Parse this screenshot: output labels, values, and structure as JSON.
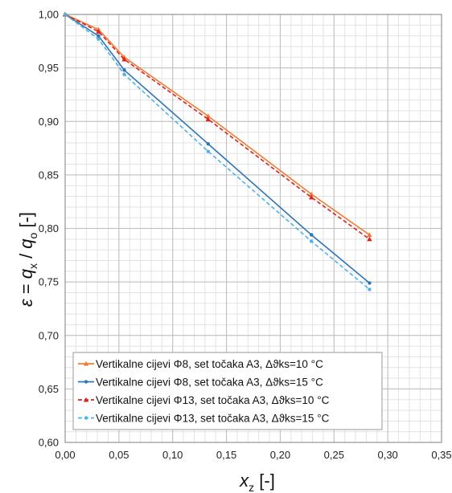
{
  "chart_data": {
    "type": "line",
    "xlabel": {
      "main": "x",
      "sub": "z",
      "unit": " [-]"
    },
    "ylabel": {
      "eps": "ε",
      "eq": " = ",
      "q1": "q",
      "s1": "x",
      "slash": " / ",
      "q2": "q",
      "s2": "o",
      "unit": " [-]"
    },
    "xlim": [
      0,
      0.35
    ],
    "ylim": [
      0.6,
      1.0
    ],
    "x_ticks": [
      "0,00",
      "0,05",
      "0,10",
      "0,15",
      "0,20",
      "0,25",
      "0,30",
      "0,35"
    ],
    "y_ticks": [
      "0,60",
      "0,65",
      "0,70",
      "0,75",
      "0,80",
      "0,85",
      "0,90",
      "0,95",
      "1,00"
    ],
    "grid": true,
    "legend_position": "bottom-left",
    "series": [
      {
        "name": "Vertikalne cijevi Φ8, set točaka A3, Δϑks=10 °C",
        "color": "#ED7D31",
        "style": "solid",
        "marker": "triangle",
        "points": [
          [
            0,
            1.0
          ],
          [
            0.031,
            0.986
          ],
          [
            0.055,
            0.96
          ],
          [
            0.133,
            0.905
          ],
          [
            0.229,
            0.832
          ],
          [
            0.283,
            0.794
          ]
        ]
      },
      {
        "name": "Vertikalne cijevi Φ8, set točaka A3, Δϑks=15 °C",
        "color": "#2E75B6",
        "style": "solid",
        "marker": "dot",
        "points": [
          [
            0,
            1.0
          ],
          [
            0.031,
            0.98
          ],
          [
            0.055,
            0.948
          ],
          [
            0.133,
            0.879
          ],
          [
            0.229,
            0.794
          ],
          [
            0.283,
            0.749
          ]
        ]
      },
      {
        "name": "Vertikalne cijevi Φ13, set točaka A3, Δϑks=10 °C",
        "color": "#E02020",
        "style": "dashed",
        "marker": "triangle",
        "points": [
          [
            0,
            1.0
          ],
          [
            0.031,
            0.984
          ],
          [
            0.055,
            0.958
          ],
          [
            0.133,
            0.902
          ],
          [
            0.229,
            0.829
          ],
          [
            0.283,
            0.79
          ]
        ]
      },
      {
        "name": "Vertikalne cijevi Φ13, set točaka A3, Δϑks=15 °C",
        "color": "#4EB3E8",
        "style": "dashed",
        "marker": "dot",
        "points": [
          [
            0,
            1.0
          ],
          [
            0.031,
            0.977
          ],
          [
            0.055,
            0.944
          ],
          [
            0.133,
            0.872
          ],
          [
            0.229,
            0.788
          ],
          [
            0.283,
            0.743
          ]
        ]
      }
    ]
  }
}
